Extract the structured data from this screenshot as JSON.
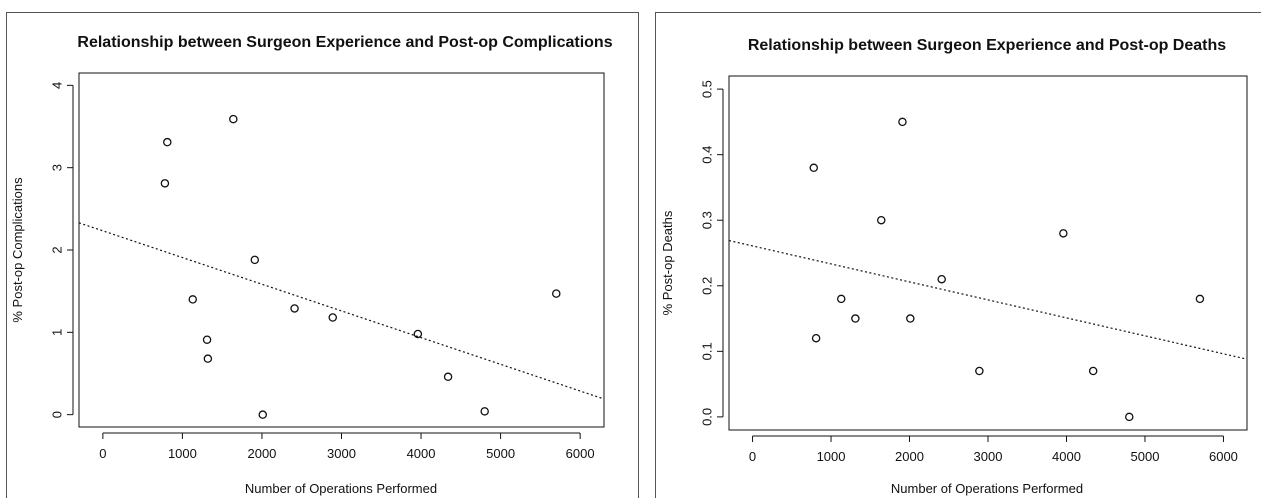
{
  "chart_data": [
    {
      "type": "scatter",
      "title": "Relationship between Surgeon Experience and Post-op Complications",
      "xlabel": "Number of Operations Performed",
      "ylabel": "% Post-op Complications",
      "xlim": [
        -300,
        6300
      ],
      "ylim": [
        -0.15,
        4.15
      ],
      "xticks": [
        0,
        1000,
        2000,
        3000,
        4000,
        5000,
        6000
      ],
      "yticks": [
        0,
        1,
        2,
        3,
        4
      ],
      "x": [
        780,
        810,
        1130,
        1310,
        1320,
        1640,
        1910,
        2010,
        2410,
        2890,
        3960,
        4340,
        4800,
        5700
      ],
      "y": [
        2.81,
        3.31,
        1.4,
        0.91,
        0.68,
        3.59,
        1.88,
        0.0,
        1.29,
        1.18,
        0.98,
        0.46,
        0.04,
        1.47
      ],
      "trendline": {
        "style": "dotted",
        "x": [
          -300,
          6300
        ],
        "y": [
          2.33,
          0.19
        ]
      },
      "grid": false,
      "marker": "open-circle",
      "color": "#111111"
    },
    {
      "type": "scatter",
      "title": "Relationship between Surgeon Experience and Post-op Deaths",
      "xlabel": "Number of Operations Performed",
      "ylabel": "% Post-op Deaths",
      "xlim": [
        -300,
        6300
      ],
      "ylim": [
        -0.02,
        0.52
      ],
      "xticks": [
        0,
        1000,
        2000,
        3000,
        4000,
        5000,
        6000
      ],
      "yticks": [
        "0.0",
        "0.1",
        "0.2",
        "0.3",
        "0.4",
        "0.5"
      ],
      "x": [
        780,
        810,
        1130,
        1310,
        1640,
        1910,
        2010,
        2410,
        2890,
        3960,
        4340,
        4800,
        5700
      ],
      "y": [
        0.38,
        0.12,
        0.18,
        0.15,
        0.3,
        0.45,
        0.15,
        0.21,
        0.07,
        0.28,
        0.07,
        0.0,
        0.18
      ],
      "trendline": {
        "style": "dotted",
        "x": [
          -300,
          6300
        ],
        "y": [
          0.269,
          0.088
        ]
      },
      "grid": false,
      "marker": "open-circle",
      "color": "#111111"
    }
  ]
}
